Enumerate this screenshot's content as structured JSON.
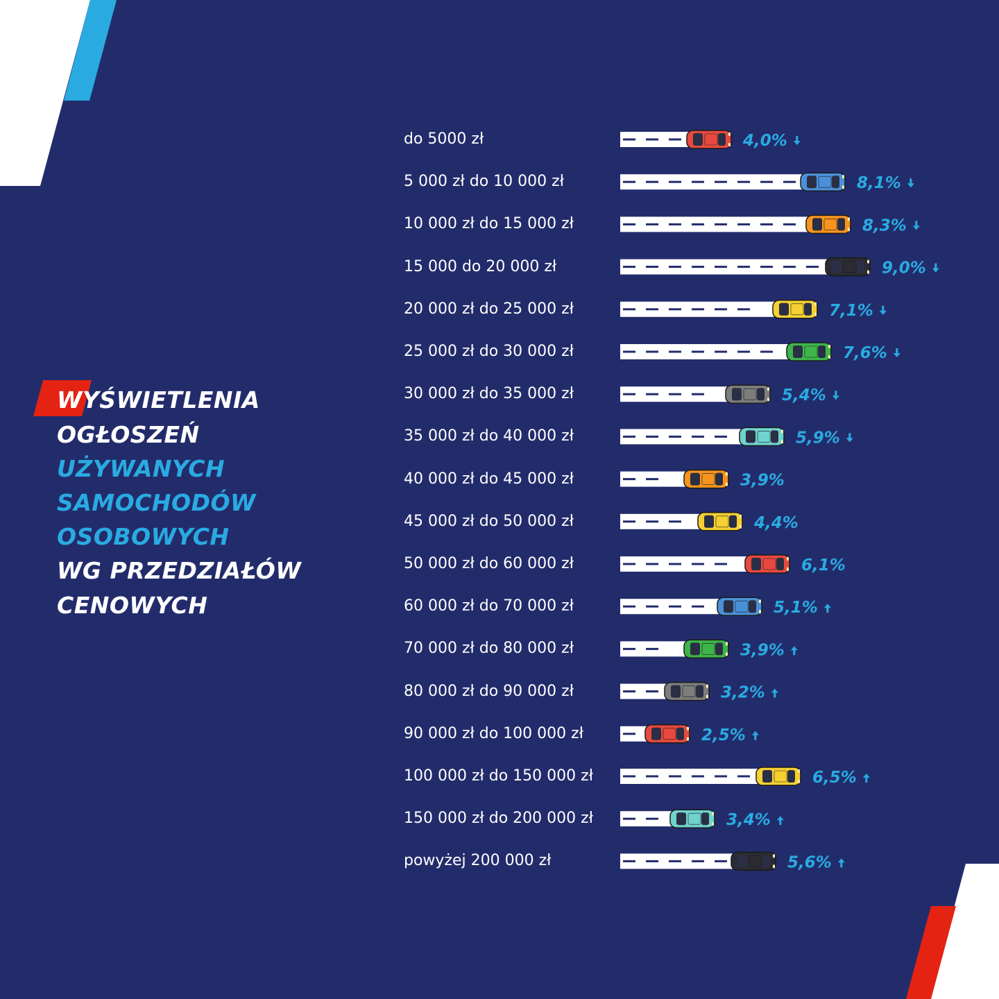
{
  "title_lines": [
    {
      "text": "WYŚWIETLENIA",
      "color": "#ffffff"
    },
    {
      "text": "OGŁOSZEŃ",
      "color": "#ffffff"
    },
    {
      "text": "UŻYWANYCH",
      "color": "#29abe2"
    },
    {
      "text": "SAMOCHODÓW",
      "color": "#29abe2"
    },
    {
      "text": "OSOBOWYCH",
      "color": "#29abe2"
    },
    {
      "text": "WG PRZEDZIAŁÓW",
      "color": "#ffffff"
    },
    {
      "text": "CENOWYCH",
      "color": "#ffffff"
    }
  ],
  "colors": {
    "background": "#232c6b",
    "accent_blue": "#29abe2",
    "accent_red": "#e42313",
    "road": "#ffffff",
    "road_dash": "#232c6b"
  },
  "chart_data": {
    "type": "bar",
    "categories": [
      "do 5000 zł",
      "5 000 zł do 10 000 zł",
      "10 000 zł do 15 000 zł",
      "15 000 do 20 000 zł",
      "20 000 zł do 25 000 zł",
      "25 000 zł do 30 000 zł",
      "30 000 zł do 35 000 zł",
      "35 000 zł do 40 000 zł",
      "40 000 zł do 45 000 zł",
      "45 000 zł do 50 000 zł",
      "50 000 zł do 60 000 zł",
      "60 000 zł do 70 000 zł",
      "70 000 zł do 80 000 zł",
      "80 000 zł do 90 000 zł",
      "90 000 zł do 100 000 zł",
      "100 000 zł do 150 000 zł",
      "150 000 zł do 200 000 zł",
      "powyżej 200 000 zł"
    ],
    "values": [
      4.0,
      8.1,
      8.3,
      9.0,
      7.1,
      7.6,
      5.4,
      5.9,
      3.9,
      4.4,
      6.1,
      5.1,
      3.9,
      3.2,
      2.5,
      6.5,
      3.4,
      5.6
    ],
    "value_labels": [
      "4,0%",
      "8,1%",
      "8,3%",
      "9,0%",
      "7,1%",
      "7,6%",
      "5,4%",
      "5,9%",
      "3,9%",
      "4,4%",
      "6,1%",
      "5,1%",
      "3,9%",
      "3,2%",
      "2,5%",
      "6,5%",
      "3,4%",
      "5,6%"
    ],
    "trend": [
      "down",
      "down",
      "down",
      "down",
      "down",
      "down",
      "down",
      "down",
      "none",
      "none",
      "none",
      "up",
      "up",
      "up",
      "up",
      "up",
      "up",
      "up"
    ],
    "car_colors": [
      "#e8493f",
      "#4a90d9",
      "#f7941d",
      "#2b2b33",
      "#f5d033",
      "#3db54a",
      "#7d7d7d",
      "#6fd3cf",
      "#f7941d",
      "#f5d033",
      "#e8493f",
      "#4a90d9",
      "#3db54a",
      "#7d7d7d",
      "#e8493f",
      "#f5d033",
      "#6fd3cf",
      "#2b2b33"
    ],
    "unit": "%",
    "xlim": [
      0,
      9.0
    ]
  }
}
